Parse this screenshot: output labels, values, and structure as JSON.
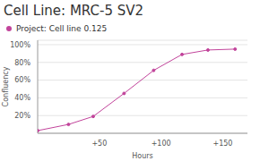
{
  "chart_data": {
    "type": "line",
    "title": "Cell Line: MRC-5 SV2",
    "x_label": "Hours",
    "y_label": "Confluency",
    "x": [
      0,
      25,
      45,
      70,
      94,
      117,
      138,
      160
    ],
    "series": [
      {
        "name": "Project: Cell line 0.125",
        "color": "#c2449b",
        "marker": "circle",
        "values": [
          3,
          10,
          19,
          45,
          71,
          89,
          94,
          95
        ]
      }
    ],
    "xlim": [
      0,
      170
    ],
    "xticks": [
      {
        "value": 50,
        "label": "+50"
      },
      {
        "value": 100,
        "label": "+100"
      },
      {
        "value": 150,
        "label": "+150"
      }
    ],
    "ylim": [
      0,
      105
    ],
    "yticks": [
      {
        "value": 20,
        "label": "20%"
      },
      {
        "value": 40,
        "label": "40%"
      },
      {
        "value": 60,
        "label": "60%"
      },
      {
        "value": 80,
        "label": "80%"
      },
      {
        "value": 100,
        "label": "100%"
      }
    ],
    "grid": true,
    "legend": "top left"
  }
}
